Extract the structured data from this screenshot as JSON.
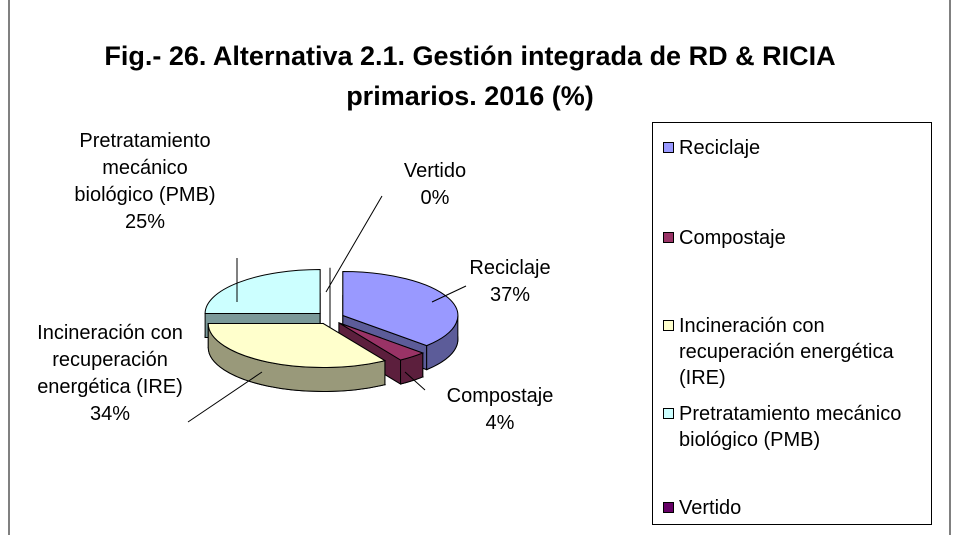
{
  "chart_data": {
    "type": "pie",
    "title": "Fig.- 26. Alternativa 2.1. Gestión integrada de RD & RICIA primarios. 2016 (%)",
    "categories": [
      "Reciclaje",
      "Compostaje",
      "Incineración con recuperación energética (IRE)",
      "Pretratamiento mecánico biológico (PMB)",
      "Vertido"
    ],
    "values": [
      37,
      4,
      34,
      25,
      0
    ],
    "value_labels": [
      "37%",
      "4%",
      "34%",
      "25%",
      "0%"
    ],
    "colors": [
      "#9999ff",
      "#993366",
      "#ffffcc",
      "#ccffff",
      "#660066"
    ],
    "legend": "right"
  }
}
